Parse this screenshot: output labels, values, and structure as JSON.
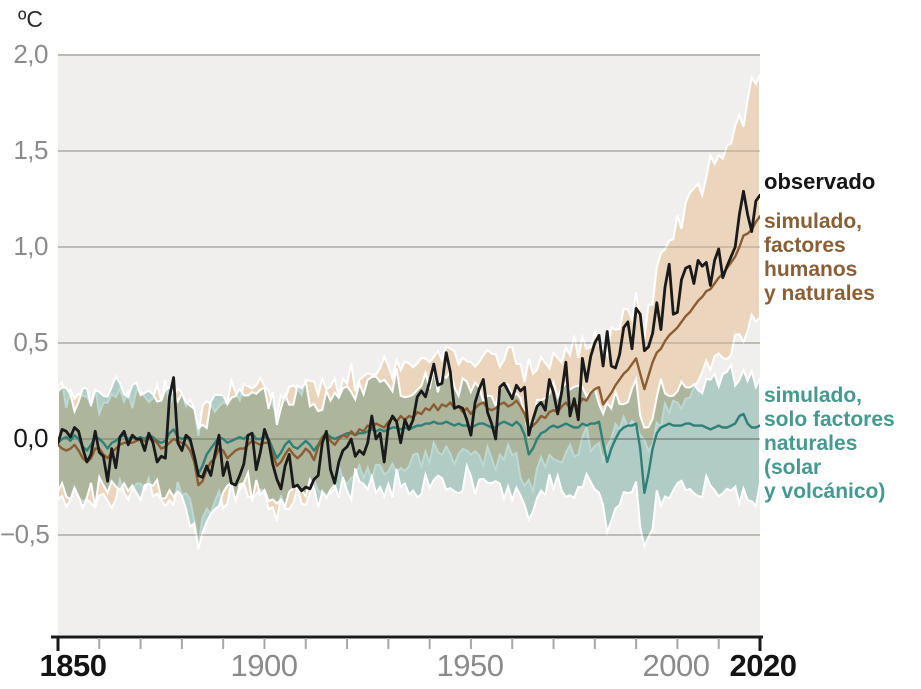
{
  "unit_label": "ºC",
  "legend": {
    "observed": "observado",
    "human_natural": "simulado,\nfactores\nhumanos\ny naturales",
    "natural": "simulado,\nsolo factores\nnaturales\n(solar\ny volcánico)"
  },
  "colors": {
    "observed_line": "#1a1a1a",
    "human_natural_line": "#8a5d33",
    "human_natural_band": "#ebd6bd",
    "natural_line": "#2f8077",
    "natural_band": "#a6ccc5",
    "plot_background": "#f0efed",
    "gridline": "#d8d7d3",
    "gridline_overlay": "rgba(128,126,120,0.40)",
    "zero_line_overlay": "rgba(110,108,104,0.55)",
    "axis": "#1a1a1a",
    "tick_minor": "#a7a7a5",
    "label_gray": "#8b8b8b",
    "observed_text": "#151515",
    "human_natural_text": "#8a5f35",
    "natural_text": "#45998e"
  },
  "chart_data": {
    "type": "line",
    "title": "",
    "ylabel": "ºC",
    "xlabel": "",
    "xlim": [
      1850,
      2020
    ],
    "ylim": [
      -1.02,
      2.0
    ],
    "grid": true,
    "x_start": 1850,
    "x_step": 1,
    "x_ticks_minor_every": 10,
    "x_ticks": [
      1850,
      1900,
      1950,
      2000,
      2020
    ],
    "x_tick_labels": [
      "1850",
      "1900",
      "1950",
      "2000",
      "2020"
    ],
    "x_tick_major": [
      true,
      false,
      false,
      false,
      true
    ],
    "y_ticks": [
      2.0,
      1.5,
      1.0,
      0.5,
      0.0,
      -0.5
    ],
    "y_tick_labels": [
      "2,0",
      "1,5",
      "1,0",
      "0,5",
      "0,0",
      "−0,5"
    ],
    "legend_position": "right",
    "series": [
      {
        "name": "observado",
        "color": "#1a1a1a",
        "width": 2.8,
        "values": [
          -0.02,
          0.05,
          0.04,
          0.01,
          0.06,
          0.04,
          -0.05,
          -0.12,
          -0.08,
          0.04,
          -0.07,
          -0.09,
          -0.22,
          -0.05,
          -0.15,
          0.01,
          0.04,
          -0.03,
          0.02,
          0.0,
          0.0,
          -0.06,
          0.03,
          -0.02,
          -0.12,
          -0.09,
          -0.1,
          0.22,
          0.32,
          -0.02,
          -0.06,
          0.02,
          0.0,
          -0.09,
          -0.19,
          -0.2,
          -0.14,
          -0.19,
          -0.08,
          0.02,
          -0.19,
          -0.12,
          -0.23,
          -0.24,
          -0.19,
          -0.13,
          0.02,
          0.03,
          -0.16,
          -0.07,
          0.05,
          -0.01,
          -0.13,
          -0.21,
          -0.26,
          -0.14,
          -0.08,
          -0.25,
          -0.24,
          -0.27,
          -0.25,
          -0.26,
          -0.21,
          -0.19,
          -0.02,
          0.04,
          -0.16,
          -0.23,
          -0.12,
          -0.06,
          -0.04,
          0.0,
          -0.09,
          -0.06,
          -0.08,
          -0.02,
          0.12,
          0.0,
          0.03,
          -0.12,
          0.07,
          0.12,
          0.09,
          -0.02,
          0.1,
          0.05,
          0.1,
          0.22,
          0.25,
          0.22,
          0.3,
          0.39,
          0.28,
          0.29,
          0.45,
          0.35,
          0.16,
          0.17,
          0.16,
          0.1,
          0.02,
          0.19,
          0.26,
          0.31,
          0.14,
          0.08,
          0.0,
          0.27,
          0.29,
          0.25,
          0.21,
          0.28,
          0.25,
          0.27,
          0.02,
          0.1,
          0.17,
          0.19,
          0.15,
          0.31,
          0.24,
          0.13,
          0.25,
          0.4,
          0.12,
          0.21,
          0.1,
          0.42,
          0.3,
          0.43,
          0.5,
          0.54,
          0.38,
          0.56,
          0.38,
          0.37,
          0.44,
          0.58,
          0.61,
          0.47,
          0.68,
          0.65,
          0.46,
          0.48,
          0.55,
          0.71,
          0.57,
          0.79,
          0.91,
          0.65,
          0.66,
          0.83,
          0.89,
          0.9,
          0.81,
          0.93,
          0.9,
          0.92,
          0.8,
          0.93,
          0.99,
          0.84,
          0.9,
          0.95,
          1.0,
          1.17,
          1.29,
          1.17,
          1.08,
          1.24,
          1.27
        ]
      },
      {
        "name": "simulado, factores humanos y naturales",
        "color": "#8a5d33",
        "width": 2.4,
        "values": [
          -0.03,
          -0.05,
          -0.06,
          -0.05,
          -0.03,
          -0.06,
          -0.1,
          -0.12,
          -0.1,
          -0.05,
          -0.05,
          -0.08,
          -0.1,
          -0.07,
          -0.05,
          -0.03,
          -0.02,
          -0.02,
          -0.02,
          -0.01,
          0.0,
          -0.01,
          0.0,
          0.0,
          -0.02,
          -0.05,
          -0.04,
          -0.02,
          0.0,
          -0.01,
          -0.02,
          -0.03,
          -0.06,
          -0.12,
          -0.24,
          -0.22,
          -0.16,
          -0.12,
          -0.1,
          -0.05,
          -0.06,
          -0.1,
          -0.08,
          -0.06,
          -0.05,
          -0.05,
          -0.03,
          -0.01,
          -0.02,
          -0.03,
          -0.02,
          -0.02,
          -0.08,
          -0.14,
          -0.12,
          -0.08,
          -0.05,
          -0.08,
          -0.1,
          -0.08,
          -0.05,
          -0.07,
          -0.11,
          -0.04,
          0.01,
          0.03,
          -0.01,
          -0.03,
          0.0,
          0.02,
          0.01,
          0.04,
          0.02,
          0.05,
          0.04,
          0.07,
          0.06,
          0.08,
          0.07,
          0.06,
          0.09,
          0.11,
          0.09,
          0.12,
          0.1,
          0.12,
          0.11,
          0.14,
          0.13,
          0.16,
          0.15,
          0.18,
          0.15,
          0.18,
          0.17,
          0.19,
          0.16,
          0.17,
          0.14,
          0.16,
          0.13,
          0.16,
          0.18,
          0.19,
          0.16,
          0.15,
          0.16,
          0.18,
          0.19,
          0.17,
          0.18,
          0.2,
          0.17,
          0.13,
          0.05,
          0.07,
          0.09,
          0.12,
          0.11,
          0.14,
          0.15,
          0.14,
          0.17,
          0.19,
          0.16,
          0.18,
          0.17,
          0.21,
          0.2,
          0.24,
          0.26,
          0.27,
          0.18,
          0.21,
          0.24,
          0.28,
          0.31,
          0.34,
          0.36,
          0.39,
          0.42,
          0.34,
          0.26,
          0.33,
          0.4,
          0.45,
          0.47,
          0.51,
          0.54,
          0.56,
          0.58,
          0.61,
          0.64,
          0.66,
          0.69,
          0.72,
          0.74,
          0.77,
          0.78,
          0.81,
          0.84,
          0.86,
          0.89,
          0.92,
          0.95,
          1.0,
          1.06,
          1.07,
          1.09,
          1.13,
          1.16
        ]
      },
      {
        "name": "simulado, solo factores naturales (solar y volcánico)",
        "color": "#2f8077",
        "width": 2.4,
        "values": [
          -0.02,
          0.0,
          0.01,
          -0.01,
          0.02,
          0.0,
          -0.04,
          -0.06,
          -0.03,
          0.01,
          0.0,
          -0.02,
          -0.05,
          -0.02,
          -0.01,
          0.01,
          0.02,
          0.0,
          0.01,
          0.0,
          0.01,
          0.0,
          0.02,
          0.01,
          -0.01,
          -0.02,
          -0.01,
          0.03,
          0.05,
          0.01,
          0.0,
          0.01,
          -0.01,
          -0.08,
          -0.18,
          -0.14,
          -0.08,
          -0.05,
          -0.02,
          0.01,
          0.0,
          -0.02,
          -0.01,
          0.0,
          0.01,
          0.0,
          0.02,
          0.03,
          0.0,
          0.0,
          0.01,
          0.0,
          -0.05,
          -0.1,
          -0.07,
          -0.03,
          -0.01,
          -0.04,
          -0.05,
          -0.03,
          -0.01,
          -0.03,
          -0.06,
          -0.03,
          0.01,
          0.03,
          0.01,
          0.0,
          0.01,
          0.02,
          0.03,
          0.03,
          0.02,
          0.03,
          0.03,
          0.04,
          0.05,
          0.04,
          0.05,
          0.04,
          0.05,
          0.06,
          0.06,
          0.05,
          0.06,
          0.05,
          0.06,
          0.07,
          0.07,
          0.08,
          0.08,
          0.09,
          0.08,
          0.08,
          0.09,
          0.08,
          0.07,
          0.08,
          0.07,
          0.07,
          0.06,
          0.07,
          0.08,
          0.08,
          0.07,
          0.06,
          0.06,
          0.08,
          0.09,
          0.08,
          0.07,
          0.09,
          0.07,
          0.02,
          -0.08,
          -0.05,
          0.0,
          0.03,
          0.04,
          0.06,
          0.07,
          0.06,
          0.07,
          0.08,
          0.07,
          0.06,
          0.06,
          0.08,
          0.07,
          0.08,
          0.08,
          0.09,
          -0.02,
          -0.12,
          -0.05,
          0.0,
          0.04,
          0.06,
          0.07,
          0.07,
          0.08,
          -0.05,
          -0.28,
          -0.18,
          -0.05,
          0.03,
          0.06,
          0.07,
          0.08,
          0.07,
          0.07,
          0.07,
          0.08,
          0.08,
          0.07,
          0.07,
          0.07,
          0.06,
          0.05,
          0.06,
          0.07,
          0.06,
          0.06,
          0.07,
          0.08,
          0.12,
          0.13,
          0.08,
          0.06,
          0.06,
          0.07
        ]
      }
    ],
    "bands": [
      {
        "name": "rango simulado, factores humanos y naturales",
        "color": "#ebd6bd",
        "keyframes": [
          [
            1850,
            -0.28,
            0.22
          ],
          [
            1860,
            -0.3,
            0.2
          ],
          [
            1870,
            -0.28,
            0.23
          ],
          [
            1880,
            -0.3,
            0.22
          ],
          [
            1883,
            -0.36,
            0.16
          ],
          [
            1884,
            -0.48,
            0.06
          ],
          [
            1886,
            -0.38,
            0.14
          ],
          [
            1890,
            -0.3,
            0.22
          ],
          [
            1900,
            -0.28,
            0.24
          ],
          [
            1903,
            -0.4,
            0.14
          ],
          [
            1906,
            -0.3,
            0.22
          ],
          [
            1910,
            -0.28,
            0.25
          ],
          [
            1915,
            -0.24,
            0.27
          ],
          [
            1920,
            -0.2,
            0.3
          ],
          [
            1925,
            -0.18,
            0.32
          ],
          [
            1930,
            -0.16,
            0.35
          ],
          [
            1935,
            -0.13,
            0.38
          ],
          [
            1940,
            -0.1,
            0.43
          ],
          [
            1945,
            -0.08,
            0.45
          ],
          [
            1950,
            -0.1,
            0.42
          ],
          [
            1955,
            -0.09,
            0.44
          ],
          [
            1960,
            -0.07,
            0.46
          ],
          [
            1963,
            -0.2,
            0.36
          ],
          [
            1965,
            -0.22,
            0.32
          ],
          [
            1968,
            -0.12,
            0.4
          ],
          [
            1972,
            -0.07,
            0.45
          ],
          [
            1976,
            -0.05,
            0.48
          ],
          [
            1980,
            0.0,
            0.55
          ],
          [
            1982,
            -0.1,
            0.46
          ],
          [
            1985,
            0.02,
            0.58
          ],
          [
            1990,
            0.1,
            0.72
          ],
          [
            1992,
            -0.06,
            0.58
          ],
          [
            1995,
            0.1,
            0.9
          ],
          [
            2000,
            0.2,
            1.12
          ],
          [
            2005,
            0.3,
            1.3
          ],
          [
            2010,
            0.42,
            1.48
          ],
          [
            2013,
            0.48,
            1.58
          ],
          [
            2016,
            0.55,
            1.7
          ],
          [
            2018,
            0.58,
            1.8
          ],
          [
            2020,
            0.62,
            1.88
          ]
        ]
      },
      {
        "name": "rango simulado, solo factores naturales",
        "color": "#a6ccc5",
        "keyframes": [
          [
            1850,
            -0.25,
            0.25
          ],
          [
            1856,
            -0.3,
            0.2
          ],
          [
            1860,
            -0.25,
            0.25
          ],
          [
            1870,
            -0.25,
            0.26
          ],
          [
            1880,
            -0.28,
            0.22
          ],
          [
            1883,
            -0.42,
            0.12
          ],
          [
            1884,
            -0.6,
            0.02
          ],
          [
            1886,
            -0.4,
            0.12
          ],
          [
            1890,
            -0.26,
            0.24
          ],
          [
            1900,
            -0.24,
            0.26
          ],
          [
            1903,
            -0.36,
            0.14
          ],
          [
            1906,
            -0.26,
            0.24
          ],
          [
            1910,
            -0.25,
            0.25
          ],
          [
            1912,
            -0.32,
            0.18
          ],
          [
            1916,
            -0.25,
            0.25
          ],
          [
            1925,
            -0.23,
            0.27
          ],
          [
            1935,
            -0.23,
            0.28
          ],
          [
            1945,
            -0.22,
            0.28
          ],
          [
            1955,
            -0.24,
            0.26
          ],
          [
            1960,
            -0.24,
            0.26
          ],
          [
            1963,
            -0.36,
            0.14
          ],
          [
            1964,
            -0.44,
            0.08
          ],
          [
            1967,
            -0.3,
            0.18
          ],
          [
            1970,
            -0.25,
            0.25
          ],
          [
            1975,
            -0.25,
            0.26
          ],
          [
            1980,
            -0.25,
            0.26
          ],
          [
            1982,
            -0.4,
            0.12
          ],
          [
            1983,
            -0.44,
            0.1
          ],
          [
            1986,
            -0.28,
            0.22
          ],
          [
            1990,
            -0.26,
            0.24
          ],
          [
            1991,
            -0.46,
            0.1
          ],
          [
            1992,
            -0.56,
            0.02
          ],
          [
            1994,
            -0.4,
            0.12
          ],
          [
            1996,
            -0.28,
            0.24
          ],
          [
            2000,
            -0.26,
            0.28
          ],
          [
            2005,
            -0.27,
            0.3
          ],
          [
            2010,
            -0.28,
            0.32
          ],
          [
            2015,
            -0.26,
            0.34
          ],
          [
            2020,
            -0.28,
            0.34
          ]
        ]
      }
    ]
  }
}
